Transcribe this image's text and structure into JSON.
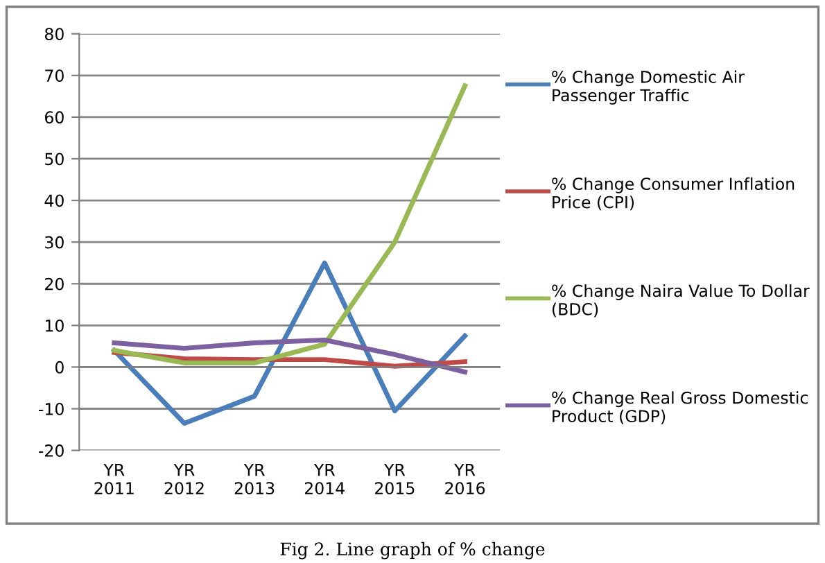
{
  "chart_data": {
    "type": "line",
    "categories": [
      "YR\n2011",
      "YR\n2012",
      "YR\n2013",
      "YR\n2014",
      "YR\n2015",
      "YR\n2016"
    ],
    "series": [
      {
        "name": "% Change Domestic Air Passenger Traffic",
        "color": "#4a7ebb",
        "values": [
          4,
          -13.5,
          -7,
          25,
          -10.5,
          7.5
        ]
      },
      {
        "name": "% Change Consumer Inflation Price (CPI)",
        "color": "#be4b48",
        "values": [
          3.5,
          2,
          1.8,
          1.8,
          0.2,
          1.3
        ]
      },
      {
        "name": "% Change Naira Value To Dollar (BDC)",
        "color": "#98b954",
        "values": [
          4,
          1,
          1,
          5.5,
          30,
          67.5
        ]
      },
      {
        "name": "% Change Real Gross Domestic Product (GDP)",
        "color": "#7d60a0",
        "values": [
          5.8,
          4.5,
          5.8,
          6.5,
          3,
          -1.2
        ]
      }
    ],
    "ylim": [
      -20,
      80
    ],
    "yticks": [
      -20,
      -10,
      0,
      10,
      20,
      30,
      40,
      50,
      60,
      70,
      80
    ],
    "grid": "y",
    "legend": "right",
    "marker": "none",
    "line_style": "solid",
    "annotations": [
      "Fig 2. Line graph of % change"
    ]
  }
}
